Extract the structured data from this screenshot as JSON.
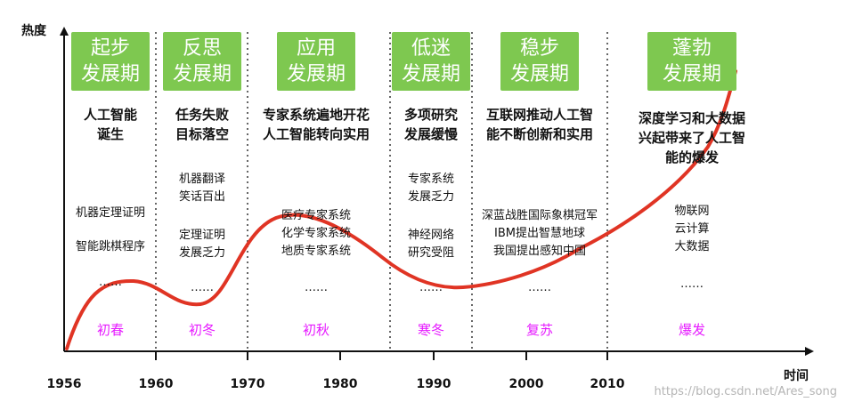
{
  "y_axis_label": "热度",
  "x_axis_label": "时间",
  "tick_labels": [
    "1956",
    "1960",
    "1970",
    "1980",
    "1990",
    "2000",
    "2010"
  ],
  "watermark": "https://blog.csdn.net/Ares_song",
  "colors": {
    "tag_bg": "#7ec850",
    "tag_text": "#ffffff",
    "curve": "#e03424",
    "season": "#e61aff",
    "divider": "#666666"
  },
  "periods": [
    {
      "tag": [
        "起步",
        "发展期"
      ],
      "headline": [
        "人工智能",
        "诞生"
      ],
      "notes": [
        "机器定理证明",
        "智能跳棋程序",
        "……"
      ],
      "season": "初春"
    },
    {
      "tag": [
        "反思",
        "发展期"
      ],
      "headline": [
        "任务失败",
        "目标落空"
      ],
      "notes": [
        "机器翻译",
        "笑话百出",
        "定理证明",
        "发展乏力",
        "……"
      ],
      "season": "初冬"
    },
    {
      "tag": [
        "应用",
        "发展期"
      ],
      "headline": [
        "专家系统遍地开花",
        "人工智能转向实用"
      ],
      "notes": [
        "医疗专家系统",
        "化学专家系统",
        "地质专家系统",
        "……"
      ],
      "season": "初秋"
    },
    {
      "tag": [
        "低迷",
        "发展期"
      ],
      "headline": [
        "多项研究",
        "发展缓慢"
      ],
      "notes": [
        "专家系统",
        "发展乏力",
        "神经网络",
        "研究受阻",
        "……"
      ],
      "season": "寒冬"
    },
    {
      "tag": [
        "稳步",
        "发展期"
      ],
      "headline": [
        "互联网推动人工智",
        "能不断创新和实用"
      ],
      "notes": [
        "深蓝战胜国际象棋冠军",
        "IBM提出智慧地球",
        "我国提出感知中国",
        "……"
      ],
      "season": "复苏"
    },
    {
      "tag": [
        "蓬勃",
        "发展期"
      ],
      "headline": [
        "深度学习和大数据",
        "兴起带来了人工智",
        "能的爆发"
      ],
      "notes": [
        "物联网",
        "云计算",
        "大数据",
        "……"
      ],
      "season": "爆发"
    }
  ]
}
